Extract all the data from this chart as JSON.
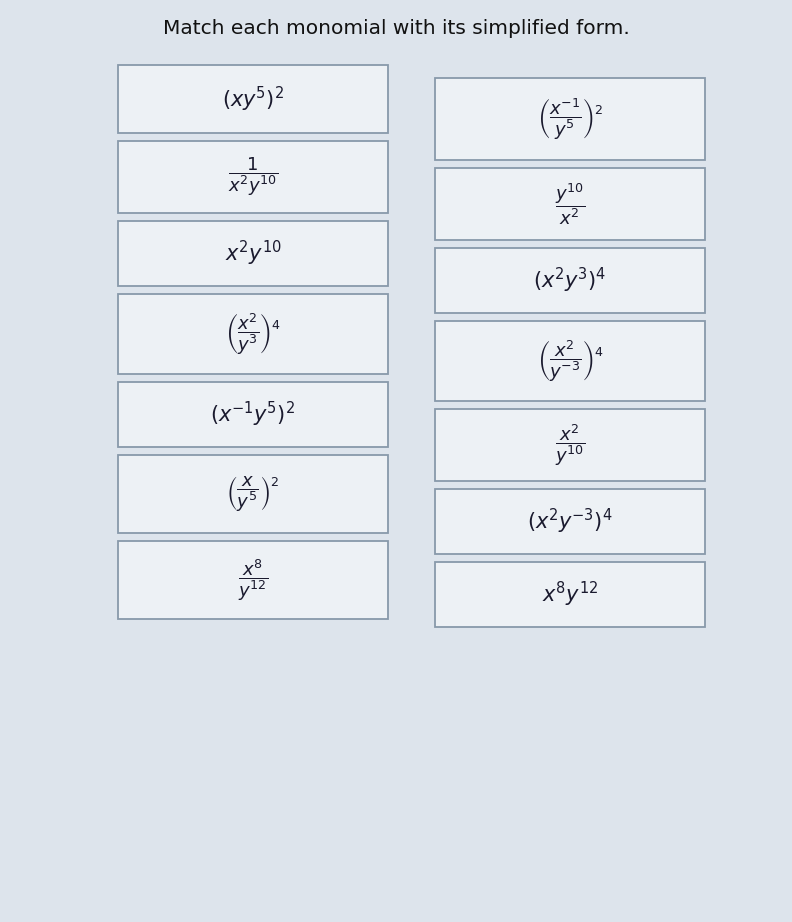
{
  "title": "Match each monomial with its simplified form.",
  "title_fontsize": 14.5,
  "background_color": "#dde4ec",
  "box_facecolor": "#edf1f5",
  "box_edgecolor": "#8899aa",
  "left_boxes": [
    "(xy^5)^2",
    "\\dfrac{1}{x^2y^{10}}",
    "x^2y^{10}",
    "\\left(\\dfrac{x^2}{y^3}\\right)^4",
    "(x^{-1}y^5)^2",
    "\\left(\\dfrac{x}{y^5}\\right)^2",
    "\\dfrac{x^8}{y^{12}}"
  ],
  "right_boxes": [
    "\\left(\\dfrac{x^{-1}}{y^5}\\right)^2",
    "\\dfrac{y^{10}}{x^2}",
    "(x^2y^3)^4",
    "\\left(\\dfrac{x^2}{y^{-3}}\\right)^4",
    "\\dfrac{x^2}{y^{10}}",
    "(x^2y^{-3})^4",
    "x^8y^{12}"
  ],
  "left_fontsizes": [
    15,
    13,
    15,
    13,
    15,
    13,
    13
  ],
  "right_fontsizes": [
    13,
    13,
    15,
    13,
    13,
    15,
    15
  ],
  "n_rows": 7
}
